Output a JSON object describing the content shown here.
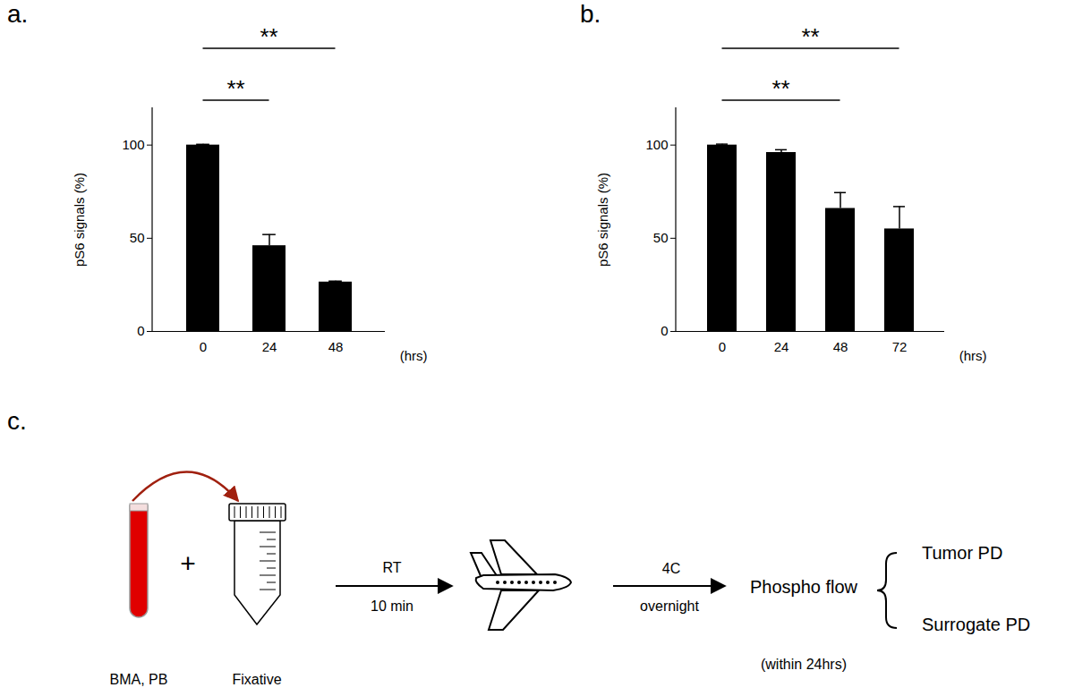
{
  "chart_data": [
    {
      "type": "bar",
      "title": "a.",
      "categories": [
        "0",
        "24",
        "48"
      ],
      "values": [
        100,
        46,
        26.5
      ],
      "errors": [
        0.4,
        6,
        0.5
      ],
      "color": "#000000",
      "ylim": [
        0,
        120
      ],
      "yticks": [
        0,
        50,
        100
      ],
      "ylabel": "pS6 signals (%)",
      "xlabel": "(hrs)",
      "annotations": [
        {
          "text": "**",
          "from": "0",
          "to": "24"
        },
        {
          "text": "**",
          "from": "0",
          "to": "48"
        }
      ]
    },
    {
      "type": "bar",
      "title": "b.",
      "categories": [
        "0",
        "24",
        "48",
        "72"
      ],
      "values": [
        100,
        96,
        66,
        55
      ],
      "errors": [
        0.5,
        1.5,
        8.5,
        12
      ],
      "color": "#000000",
      "ylim": [
        0,
        120
      ],
      "yticks": [
        0,
        50,
        100
      ],
      "ylabel": "pS6 signals (%)",
      "xlabel": "(hrs)",
      "annotations": [
        {
          "text": "**",
          "from": "0",
          "to": "48"
        },
        {
          "text": "**",
          "from": "0",
          "to": "72"
        }
      ]
    }
  ],
  "diagram": {
    "label": "c.",
    "sample": "BMA, PB",
    "plus": "+",
    "reagent": "Fixative",
    "step1": {
      "above": "RT",
      "below": "10 min"
    },
    "step2": {
      "above": "4C",
      "below": "overnight"
    },
    "assay": {
      "name": "Phospho flow",
      "note": "(within 24hrs)",
      "readouts": [
        "Tumor PD",
        "Surrogate PD"
      ]
    }
  }
}
